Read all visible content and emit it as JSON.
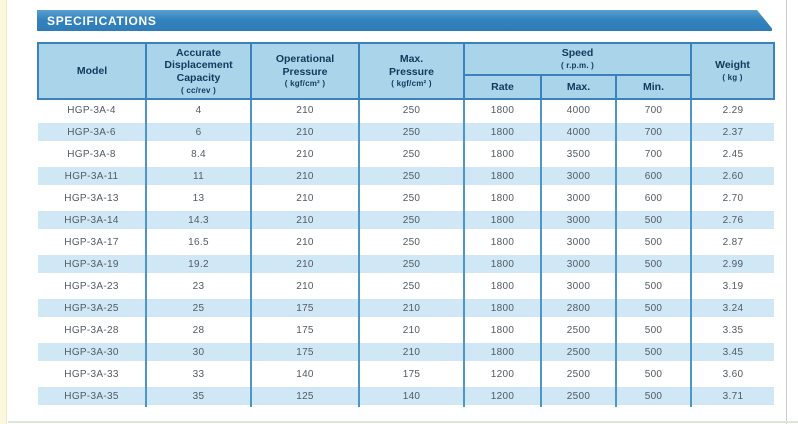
{
  "banner": {
    "title": "SPECIFICATIONS"
  },
  "colors": {
    "banner_top": "#57a0d0",
    "banner_mid": "#3583bd",
    "banner_bot": "#2e7cb8",
    "header_bg": "#a9d4ea",
    "border": "#3b82bd",
    "body_divider": "#4e96c8",
    "stripe": "#d0e7f5",
    "header_text": "#12395e",
    "body_text": "#515b63",
    "left_strip": "#fbf8dc"
  },
  "table": {
    "headers": {
      "model": {
        "label": "Model"
      },
      "displacement": {
        "label": "Accurate\nDisplacement\nCapacity",
        "unit": "( cc/rev )"
      },
      "operational_pressure": {
        "label": "Operational\nPressure",
        "unit": "( kgf/cm² )"
      },
      "max_pressure": {
        "label": "Max.\nPressure",
        "unit": "( kgf/cm² )"
      },
      "speed": {
        "label": "Speed",
        "unit": "( r.p.m. )",
        "sub": [
          "Rate",
          "Max.",
          "Min."
        ]
      },
      "weight": {
        "label": "Weight",
        "unit": "( kg )"
      }
    },
    "rows": [
      [
        "HGP-3A-4",
        "4",
        "210",
        "250",
        "1800",
        "4000",
        "700",
        "2.29"
      ],
      [
        "HGP-3A-6",
        "6",
        "210",
        "250",
        "1800",
        "4000",
        "700",
        "2.37"
      ],
      [
        "HGP-3A-8",
        "8.4",
        "210",
        "250",
        "1800",
        "3500",
        "700",
        "2.45"
      ],
      [
        "HGP-3A-11",
        "11",
        "210",
        "250",
        "1800",
        "3000",
        "600",
        "2.60"
      ],
      [
        "HGP-3A-13",
        "13",
        "210",
        "250",
        "1800",
        "3000",
        "600",
        "2.70"
      ],
      [
        "HGP-3A-14",
        "14.3",
        "210",
        "250",
        "1800",
        "3000",
        "500",
        "2.76"
      ],
      [
        "HGP-3A-17",
        "16.5",
        "210",
        "250",
        "1800",
        "3000",
        "500",
        "2.87"
      ],
      [
        "HGP-3A-19",
        "19.2",
        "210",
        "250",
        "1800",
        "3000",
        "500",
        "2.99"
      ],
      [
        "HGP-3A-23",
        "23",
        "210",
        "250",
        "1800",
        "3000",
        "500",
        "3.19"
      ],
      [
        "HGP-3A-25",
        "25",
        "175",
        "210",
        "1800",
        "2800",
        "500",
        "3.24"
      ],
      [
        "HGP-3A-28",
        "28",
        "175",
        "210",
        "1800",
        "2500",
        "500",
        "3.35"
      ],
      [
        "HGP-3A-30",
        "30",
        "175",
        "210",
        "1800",
        "2500",
        "500",
        "3.45"
      ],
      [
        "HGP-3A-33",
        "33",
        "140",
        "175",
        "1200",
        "2500",
        "500",
        "3.60"
      ],
      [
        "HGP-3A-35",
        "35",
        "125",
        "140",
        "1200",
        "2500",
        "500",
        "3.71"
      ]
    ]
  }
}
